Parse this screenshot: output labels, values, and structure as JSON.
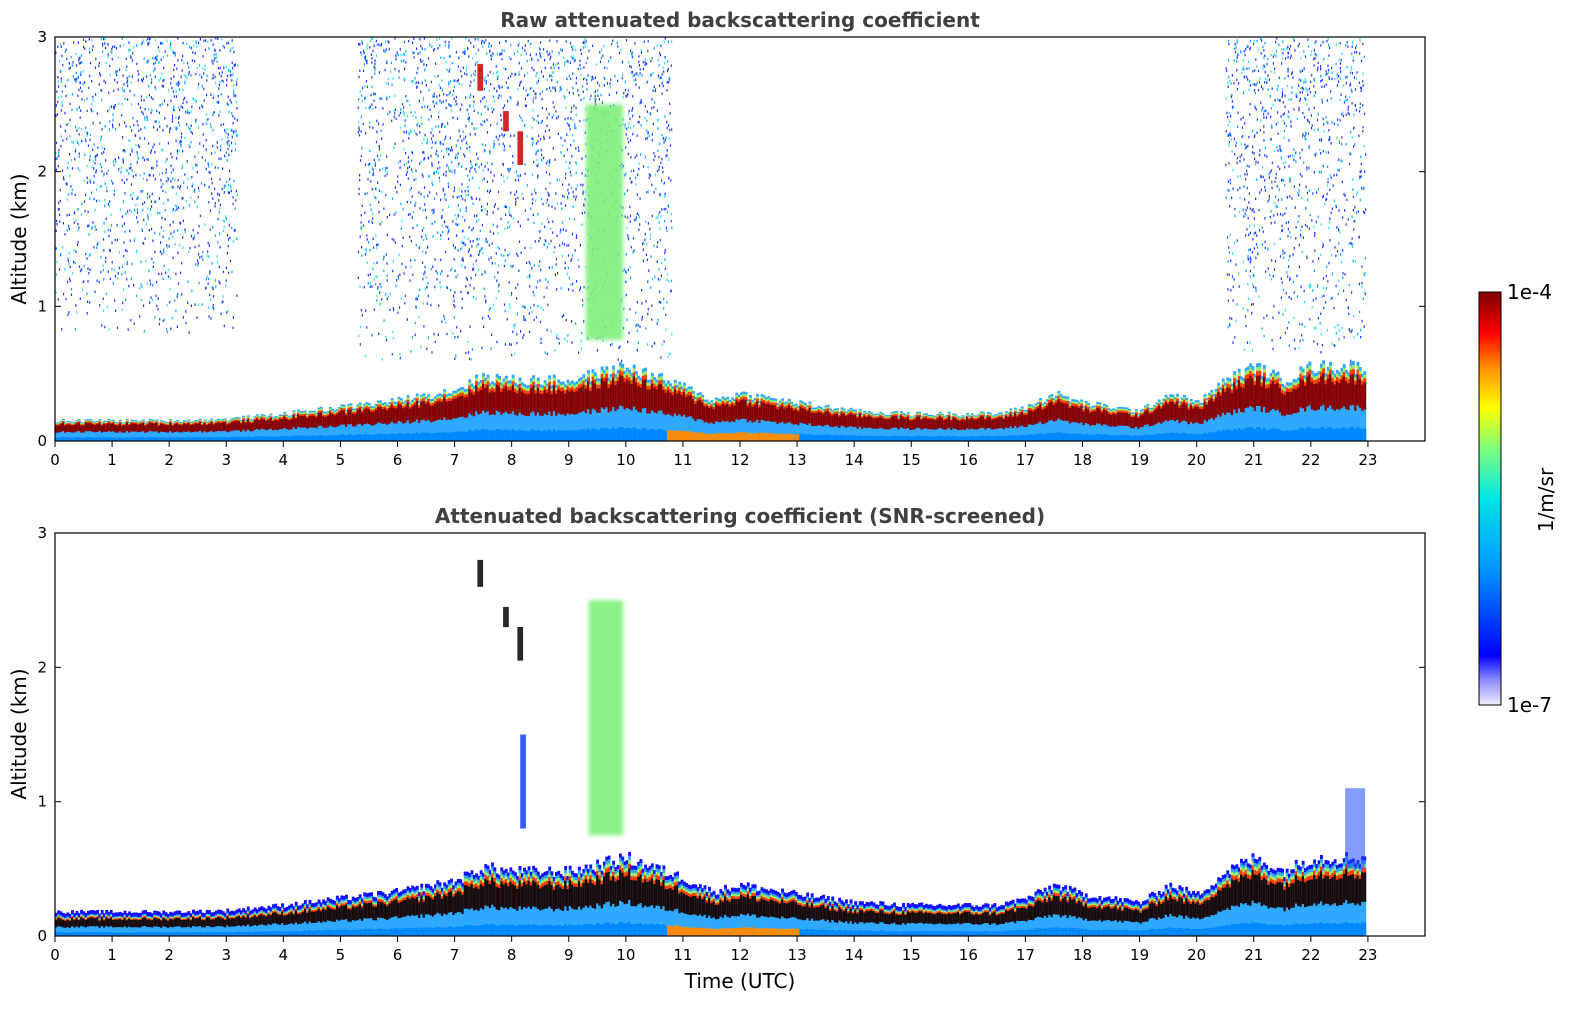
{
  "chart_data": [
    {
      "type": "heatmap",
      "title": "Raw attenuated backscattering coefficient",
      "xlabel": "",
      "ylabel": "Altitude (km)",
      "xlim": [
        0,
        24
      ],
      "ylim": [
        0,
        3
      ],
      "x_ticks": [
        "0",
        "1",
        "2",
        "3",
        "4",
        "5",
        "6",
        "7",
        "8",
        "9",
        "10",
        "11",
        "12",
        "13",
        "14",
        "15",
        "16",
        "17",
        "18",
        "19",
        "20",
        "21",
        "22",
        "23"
      ],
      "y_ticks": [
        "0",
        "1",
        "2",
        "3"
      ],
      "data_end_time": 22.95,
      "boundary_layer_top_km": [
        {
          "t": 0,
          "z": 0.15
        },
        {
          "t": 1,
          "z": 0.15
        },
        {
          "t": 2,
          "z": 0.15
        },
        {
          "t": 3,
          "z": 0.16
        },
        {
          "t": 4,
          "z": 0.2
        },
        {
          "t": 5,
          "z": 0.25
        },
        {
          "t": 6,
          "z": 0.3
        },
        {
          "t": 7,
          "z": 0.38
        },
        {
          "t": 7.5,
          "z": 0.48
        },
        {
          "t": 8,
          "z": 0.45
        },
        {
          "t": 9,
          "z": 0.45
        },
        {
          "t": 10,
          "z": 0.55
        },
        {
          "t": 11,
          "z": 0.4
        },
        {
          "t": 11.5,
          "z": 0.3
        },
        {
          "t": 12,
          "z": 0.35
        },
        {
          "t": 13,
          "z": 0.28
        },
        {
          "t": 14,
          "z": 0.22
        },
        {
          "t": 15,
          "z": 0.2
        },
        {
          "t": 16,
          "z": 0.2
        },
        {
          "t": 16.5,
          "z": 0.2
        },
        {
          "t": 17,
          "z": 0.25
        },
        {
          "t": 17.5,
          "z": 0.35
        },
        {
          "t": 18,
          "z": 0.28
        },
        {
          "t": 19,
          "z": 0.22
        },
        {
          "t": 19.5,
          "z": 0.35
        },
        {
          "t": 20,
          "z": 0.28
        },
        {
          "t": 20.5,
          "z": 0.45
        },
        {
          "t": 21,
          "z": 0.55
        },
        {
          "t": 21.5,
          "z": 0.45
        },
        {
          "t": 22,
          "z": 0.55
        },
        {
          "t": 22.6,
          "z": 0.55
        }
      ],
      "features": [
        {
          "name": "noise region",
          "t_start": 0,
          "t_end": 3.2,
          "z_start": 0.8,
          "z_end": 3.0,
          "level": "low"
        },
        {
          "name": "noise region",
          "t_start": 5.3,
          "t_end": 10.8,
          "z_start": 0.6,
          "z_end": 3.0,
          "level": "low"
        },
        {
          "name": "noise region",
          "t_start": 20.5,
          "t_end": 22.95,
          "z_start": 0.6,
          "z_end": 3.0,
          "level": "low"
        },
        {
          "name": "cloud",
          "t_start": 9.3,
          "t_end": 9.95,
          "z_start": 0.75,
          "z_end": 2.5,
          "level": "medium"
        },
        {
          "name": "cloud",
          "t_start": 7.4,
          "t_end": 7.5,
          "z_start": 2.6,
          "z_end": 2.8,
          "level": "high"
        },
        {
          "name": "cloud",
          "t_start": 7.85,
          "t_end": 7.95,
          "z_start": 2.3,
          "z_end": 2.45,
          "level": "high"
        },
        {
          "name": "cloud",
          "t_start": 8.1,
          "t_end": 8.2,
          "z_start": 2.05,
          "z_end": 2.3,
          "level": "high"
        }
      ]
    },
    {
      "type": "heatmap",
      "title": "Attenuated backscattering coefficient (SNR-screened)",
      "xlabel": "Time (UTC)",
      "ylabel": "Altitude (km)",
      "xlim": [
        0,
        24
      ],
      "ylim": [
        0,
        3
      ],
      "x_ticks": [
        "0",
        "1",
        "2",
        "3",
        "4",
        "5",
        "6",
        "7",
        "8",
        "9",
        "10",
        "11",
        "12",
        "13",
        "14",
        "15",
        "16",
        "17",
        "18",
        "19",
        "20",
        "21",
        "22",
        "23"
      ],
      "y_ticks": [
        "0",
        "1",
        "2",
        "3"
      ],
      "data_end_time": 22.95,
      "features": [
        {
          "name": "cloud",
          "t_start": 9.35,
          "t_end": 9.95,
          "z_start": 0.75,
          "z_end": 2.5,
          "level": "medium"
        },
        {
          "name": "cloud",
          "t_start": 8.15,
          "t_end": 8.25,
          "z_start": 0.8,
          "z_end": 1.5,
          "level": "low"
        },
        {
          "name": "cloud",
          "t_start": 7.4,
          "t_end": 7.5,
          "z_start": 2.6,
          "z_end": 2.8,
          "level": "very-high"
        },
        {
          "name": "cloud",
          "t_start": 7.85,
          "t_end": 7.95,
          "z_start": 2.3,
          "z_end": 2.45,
          "level": "very-high"
        },
        {
          "name": "cloud",
          "t_start": 8.1,
          "t_end": 8.2,
          "z_start": 2.05,
          "z_end": 2.3,
          "level": "very-high"
        },
        {
          "name": "aerosol",
          "t_start": 22.6,
          "t_end": 22.95,
          "z_start": 0.5,
          "z_end": 1.1,
          "level": "low"
        }
      ]
    }
  ],
  "colorbar": {
    "label": "1/m/sr",
    "min_label": "1e-7",
    "max_label": "1e-4",
    "scale": "log",
    "colors": [
      "#e8e8ff",
      "#0000ff",
      "#0080ff",
      "#00ffff",
      "#80ff80",
      "#ffff00",
      "#ff8000",
      "#ff0000",
      "#800000"
    ]
  }
}
